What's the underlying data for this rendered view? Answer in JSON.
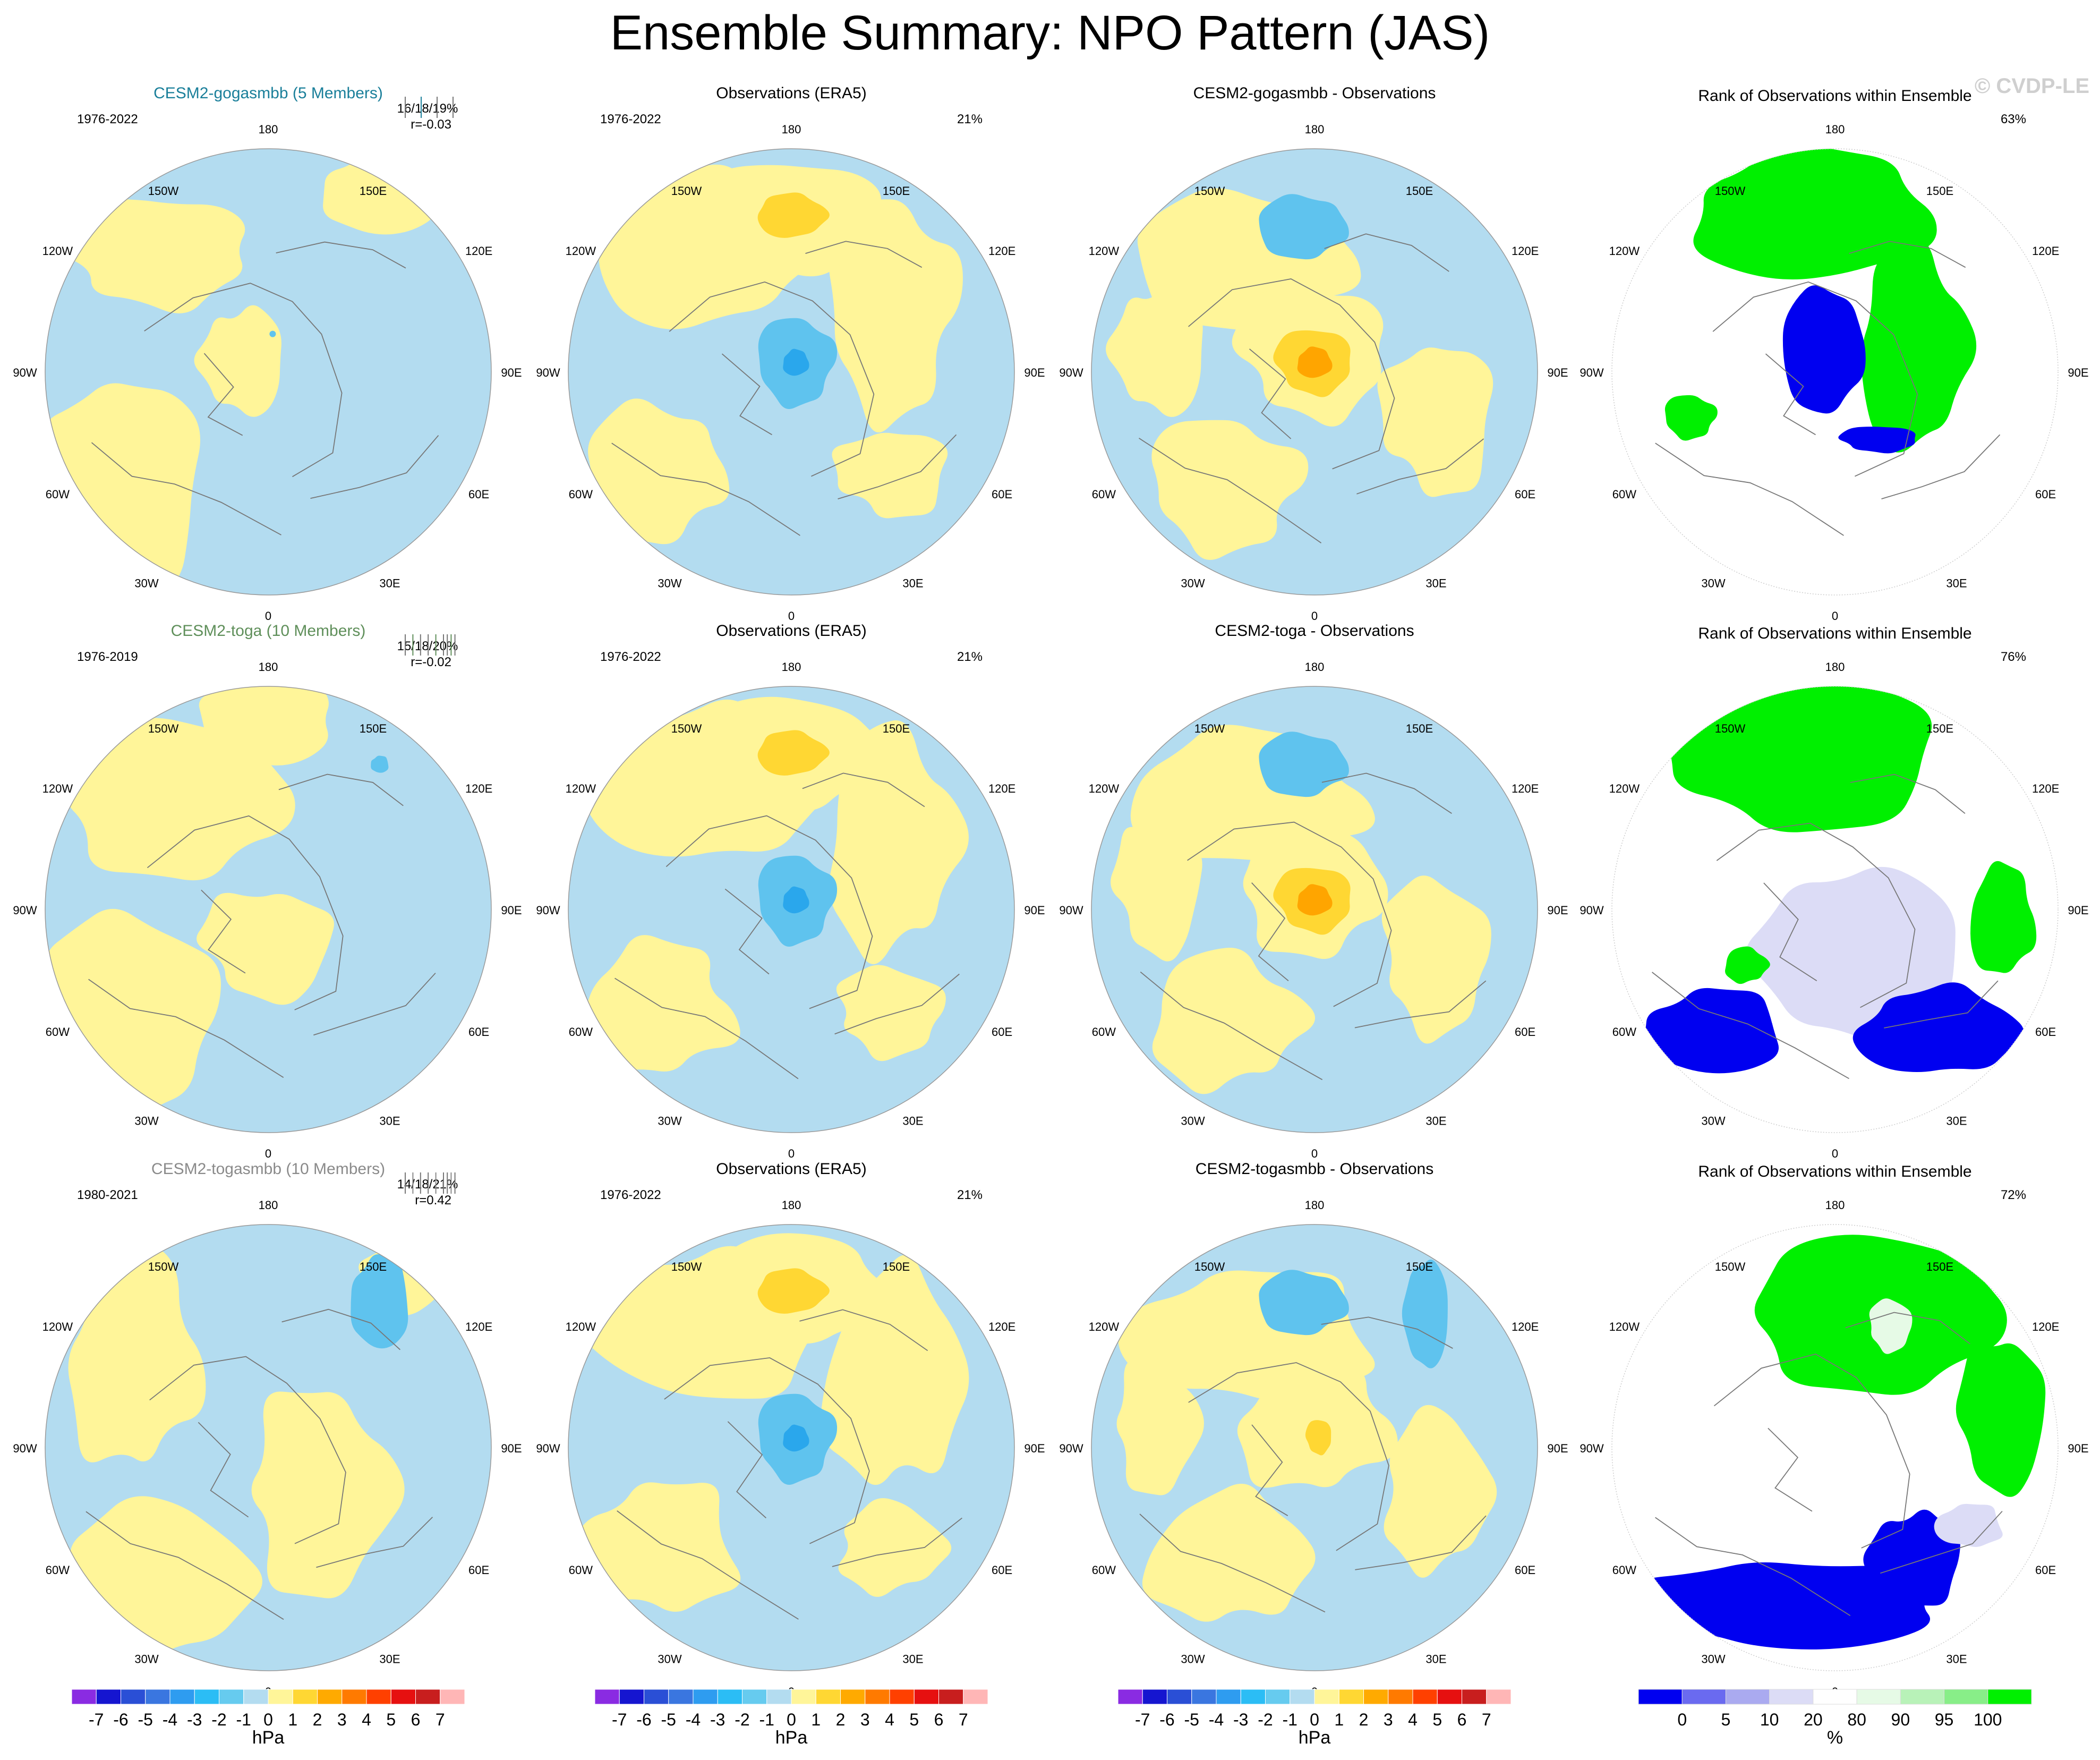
{
  "title": "Ensemble Summary: NPO Pattern (JAS)",
  "watermark": "© CVDP-LE",
  "colors": {
    "ocean": "#b3dcf0",
    "positive": "#fff599",
    "neg2": "#5fc3ee",
    "neg3": "#2aa7ec",
    "pos2": "#ffd733",
    "pos3": "#ffa500",
    "rank_low": "#0000f0",
    "rank_high": "#00f000",
    "rank_lightlow": "#dcdcf6",
    "rank_lighthigh": "#e6fae6"
  },
  "lon_labels": [
    "180",
    "150E",
    "120E",
    "90E",
    "60E",
    "30E",
    "0",
    "30W",
    "60W",
    "90W",
    "120W",
    "150W"
  ],
  "rows": [
    {
      "model": {
        "title": "CESM2-gogasmbb (5 Members)",
        "title_color": "#1a7f9a",
        "years": "1976-2022",
        "stat1": "16/18/19%",
        "stat2": "r=-0.03"
      },
      "obs": {
        "title": "Observations (ERA5)",
        "years": "1976-2022",
        "pct": "21%"
      },
      "diff": {
        "title": "CESM2-gogasmbb - Observations"
      },
      "rank": {
        "title": "Rank of Observations within Ensemble",
        "pct": "63%"
      }
    },
    {
      "model": {
        "title": "CESM2-toga (10 Members)",
        "title_color": "#5f8f5a",
        "years": "1976-2019",
        "stat1": "15/18/20%",
        "stat2": "r=-0.02"
      },
      "obs": {
        "title": "Observations (ERA5)",
        "years": "1976-2022",
        "pct": "21%"
      },
      "diff": {
        "title": "CESM2-toga - Observations"
      },
      "rank": {
        "title": "Rank of Observations within Ensemble",
        "pct": "76%"
      }
    },
    {
      "model": {
        "title": "CESM2-togasmbb (10 Members)",
        "title_color": "#8a8a8a",
        "years": "1980-2021",
        "stat1": "14/18/21%",
        "stat2": "r=0.42"
      },
      "obs": {
        "title": "Observations (ERA5)",
        "years": "1976-2022",
        "pct": "21%"
      },
      "diff": {
        "title": "CESM2-togasmbb - Observations"
      },
      "rank": {
        "title": "Rank of Observations within Ensemble",
        "pct": "72%"
      }
    }
  ],
  "colorbar_hpa": {
    "unit": "hPa",
    "labels": [
      "-7",
      "-6",
      "-5",
      "-4",
      "-3",
      "-2",
      "-1",
      "0",
      "1",
      "2",
      "3",
      "4",
      "5",
      "6",
      "7"
    ],
    "colors": [
      "#8a2be2",
      "#1515d0",
      "#2a4fd6",
      "#3a76e0",
      "#2e9cf0",
      "#2bbdf5",
      "#66cbef",
      "#b3dcf0",
      "#fff599",
      "#ffd733",
      "#ffaa00",
      "#ff7a00",
      "#ff4000",
      "#e61010",
      "#c81e1e",
      "#ffb6b6"
    ]
  },
  "colorbar_pct": {
    "unit": "%",
    "labels": [
      "0",
      "5",
      "10",
      "20",
      "80",
      "90",
      "95",
      "100"
    ],
    "colors": [
      "#0000f0",
      "#6a6af0",
      "#aaaaf0",
      "#dcdcf6",
      "#ffffff",
      "#e6fae6",
      "#b8f2b8",
      "#88ee88",
      "#00f000"
    ]
  }
}
